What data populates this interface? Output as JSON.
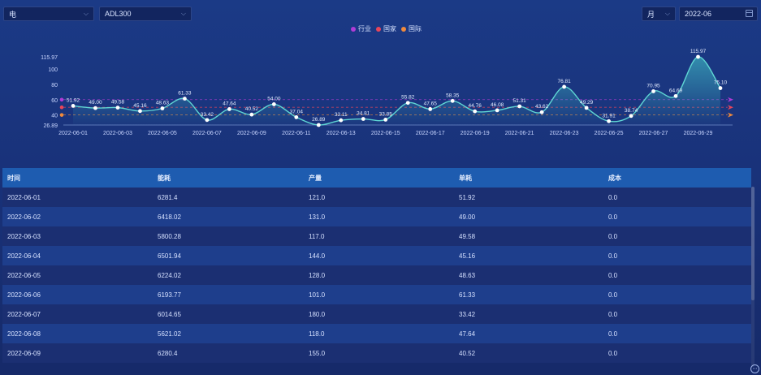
{
  "filters": {
    "energy_type": "电",
    "index": "ADL300",
    "period": "月",
    "date": "2022-06"
  },
  "legend": [
    {
      "label": "行业",
      "color": "#b03cd6"
    },
    {
      "label": "国家",
      "color": "#e8455a"
    },
    {
      "label": "国际",
      "color": "#f08a3c"
    }
  ],
  "chart_data": {
    "type": "line",
    "x": [
      "2022-06-01",
      "2022-06-02",
      "2022-06-03",
      "2022-06-04",
      "2022-06-05",
      "2022-06-06",
      "2022-06-07",
      "2022-06-08",
      "2022-06-09",
      "2022-06-10",
      "2022-06-11",
      "2022-06-12",
      "2022-06-13",
      "2022-06-14",
      "2022-06-15",
      "2022-06-16",
      "2022-06-17",
      "2022-06-18",
      "2022-06-19",
      "2022-06-20",
      "2022-06-21",
      "2022-06-22",
      "2022-06-23",
      "2022-06-24",
      "2022-06-25",
      "2022-06-26",
      "2022-06-27",
      "2022-06-28",
      "2022-06-29",
      "2022-06-30"
    ],
    "x_tick_labels": [
      "2022-06-01",
      "2022-06-03",
      "2022-06-05",
      "2022-06-07",
      "2022-06-09",
      "2022-06-11",
      "2022-06-13",
      "2022-06-15",
      "2022-06-17",
      "2022-06-19",
      "2022-06-21",
      "2022-06-23",
      "2022-06-25",
      "2022-06-27",
      "2022-06-29"
    ],
    "values": [
      51.92,
      49.0,
      49.58,
      45.16,
      48.63,
      61.33,
      33.42,
      47.64,
      40.52,
      54.0,
      37.04,
      26.89,
      33.11,
      34.81,
      33.85,
      55.82,
      47.65,
      58.35,
      44.76,
      46.08,
      51.31,
      43.62,
      76.81,
      49.29,
      31.91,
      38.74,
      70.95,
      64.69,
      115.97,
      75.1
    ],
    "value_labels": [
      "51.92",
      "49.00",
      "49.58",
      "45.16",
      "48.63",
      "61.33",
      "33.42",
      "47.64",
      "40.52",
      "54.00",
      "37.04",
      "26.89",
      "33.11",
      "34.81",
      "33.85",
      "55.82",
      "47.65",
      "58.35",
      "44.76",
      "46.08",
      "51.31",
      "43.62",
      "76.81",
      "49.29",
      "31.91",
      "38.74",
      "70.95",
      "64.69",
      "115.97",
      "75.10"
    ],
    "y_ticks": [
      "115.97",
      "100",
      "80",
      "60",
      "40",
      "26.89"
    ],
    "ylim": [
      26.89,
      115.97
    ],
    "reference_lines": [
      {
        "name": "行业",
        "value": 60,
        "color": "#b03cd6"
      },
      {
        "name": "国家",
        "value": 50,
        "color": "#e8455a"
      },
      {
        "name": "国际",
        "value": 40,
        "color": "#f08a3c"
      }
    ]
  },
  "table": {
    "headers": [
      "时间",
      "能耗",
      "产量",
      "单耗",
      "成本"
    ],
    "rows": [
      [
        "2022-06-01",
        "6281.4",
        "121.0",
        "51.92",
        "0.0"
      ],
      [
        "2022-06-02",
        "6418.02",
        "131.0",
        "49.00",
        "0.0"
      ],
      [
        "2022-06-03",
        "5800.28",
        "117.0",
        "49.58",
        "0.0"
      ],
      [
        "2022-06-04",
        "6501.94",
        "144.0",
        "45.16",
        "0.0"
      ],
      [
        "2022-06-05",
        "6224.02",
        "128.0",
        "48.63",
        "0.0"
      ],
      [
        "2022-06-06",
        "6193.77",
        "101.0",
        "61.33",
        "0.0"
      ],
      [
        "2022-06-07",
        "6014.65",
        "180.0",
        "33.42",
        "0.0"
      ],
      [
        "2022-06-08",
        "5621.02",
        "118.0",
        "47.64",
        "0.0"
      ],
      [
        "2022-06-09",
        "6280.4",
        "155.0",
        "40.52",
        "0.0"
      ]
    ]
  }
}
